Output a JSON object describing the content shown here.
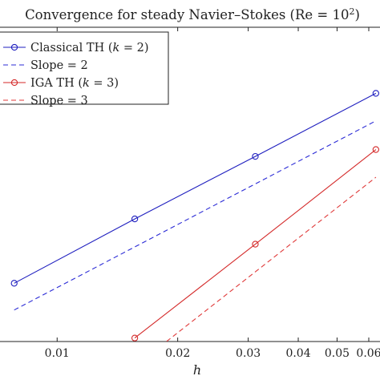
{
  "chart_data": {
    "type": "line",
    "title": "Convergence for steady Navier–Stokes (Re = 10²)",
    "title_base": "Convergence for steady Navier–Stokes (Re = 10",
    "title_sup": "2",
    "title_close": ")",
    "xlabel": "h",
    "ylabel": "",
    "xscale": "log",
    "yscale": "log",
    "xlim": [
      0.0072,
      0.064
    ],
    "ylim": [
      1,
      1000
    ],
    "grid": false,
    "legend_position": "top-left",
    "x_ticks": [
      {
        "value": 0.01,
        "label": "0.01"
      },
      {
        "value": 0.02,
        "label": "0.02"
      },
      {
        "value": 0.03,
        "label": "0.03"
      },
      {
        "value": 0.04,
        "label": "0.04"
      },
      {
        "value": 0.05,
        "label": "0.05"
      },
      {
        "value": 0.06,
        "label": "0.06"
      }
    ],
    "series": [
      {
        "name": "Classical TH (k = 2)",
        "legend_base": "Classical TH (",
        "legend_var": "k",
        "legend_rest": " = 2)",
        "color": "#1f1fbf",
        "style": "solid",
        "marker": "circle",
        "x": [
          0.0078125,
          0.015625,
          0.03125,
          0.0625
        ],
        "y": [
          3.6,
          14.8,
          58.5,
          234
        ]
      },
      {
        "name": "Slope = 2",
        "legend_base": "Slope = 2",
        "color": "#2b2bd6",
        "style": "dashed",
        "marker": "none",
        "x": [
          0.0078125,
          0.0625
        ],
        "y": [
          2.0,
          128
        ]
      },
      {
        "name": "IGA TH (k = 3)",
        "legend_base": "IGA TH (",
        "legend_var": "k",
        "legend_rest": " = 3)",
        "color": "#d42a2a",
        "style": "solid",
        "marker": "circle",
        "x": [
          0.015625,
          0.03125,
          0.0625
        ],
        "y": [
          1.08,
          8.5,
          68
        ]
      },
      {
        "name": "Slope = 3",
        "legend_base": "Slope = 3",
        "color": "#e03a3a",
        "style": "dashed",
        "marker": "none",
        "x": [
          0.0181,
          0.0625
        ],
        "y": [
          0.9,
          37
        ]
      }
    ]
  },
  "colors": {
    "axis": "#222222",
    "background": "#ffffff"
  }
}
